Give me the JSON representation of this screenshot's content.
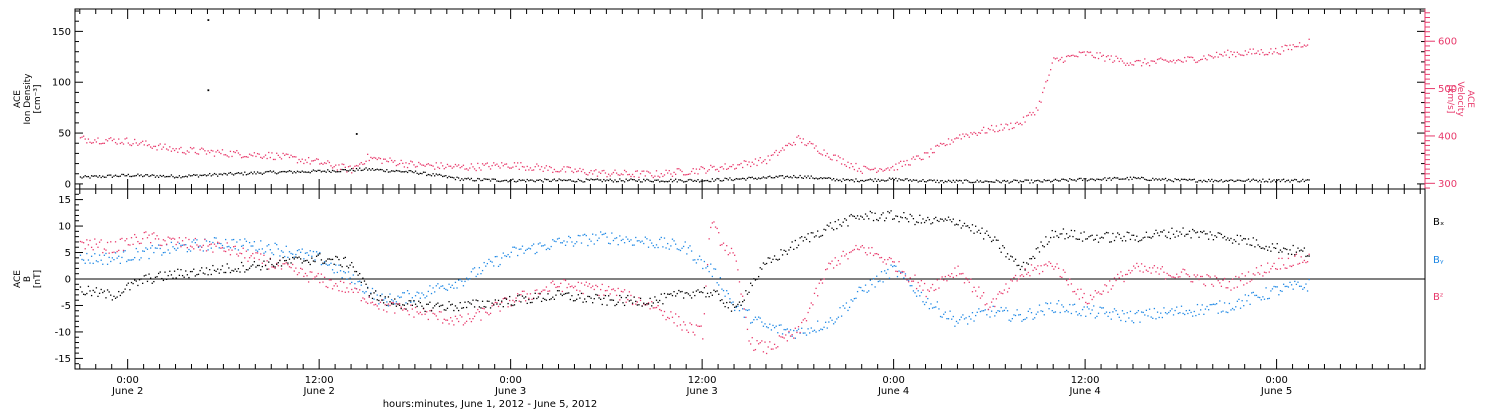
{
  "chart_data": [
    {
      "type": "scatter",
      "panel": "top",
      "ylabel_left": [
        "ACE",
        "Ion Density",
        "[cm⁻³]"
      ],
      "ylabel_right": [
        "ACE",
        "Velocity",
        "[km/s]"
      ],
      "ylim_left": [
        -5,
        172
      ],
      "yticks_left": [
        0,
        50,
        100,
        150
      ],
      "ylim_right": [
        288,
        668
      ],
      "yticks_right": [
        300,
        400,
        500,
        600
      ],
      "colors": {
        "density": "#000000",
        "velocity": "#e8396b"
      },
      "series": [
        {
          "axis": "left",
          "x": [
            -3,
            0,
            3,
            6,
            9,
            12,
            15,
            18,
            21,
            24,
            27,
            30,
            33,
            36,
            39,
            42,
            45,
            48,
            51,
            54,
            57,
            60,
            63,
            66,
            69,
            74
          ],
          "values": [
            7,
            9,
            8,
            10,
            12,
            13,
            15,
            12,
            5,
            4,
            4,
            4,
            4,
            4,
            6,
            8,
            4,
            5,
            3,
            3,
            3,
            5,
            6,
            4,
            4,
            4
          ]
        },
        {
          "axis": "right",
          "x": [
            -3,
            0,
            3,
            6,
            9,
            12,
            14,
            15,
            18,
            21,
            24,
            27,
            30,
            33,
            36,
            38,
            39,
            40,
            42,
            44,
            46,
            48,
            50,
            52,
            54,
            55,
            56,
            57,
            58,
            60,
            63,
            66,
            69,
            72,
            74
          ],
          "values": [
            395,
            390,
            372,
            365,
            360,
            345,
            330,
            355,
            340,
            335,
            340,
            330,
            322,
            320,
            330,
            338,
            345,
            350,
            395,
            360,
            330,
            335,
            360,
            400,
            415,
            420,
            430,
            460,
            560,
            575,
            555,
            560,
            575,
            580,
            600
          ]
        }
      ],
      "scattered_points": [
        {
          "axis": "left",
          "x": 5,
          "y": 162
        },
        {
          "axis": "left",
          "x": 5,
          "y": 93
        },
        {
          "axis": "left",
          "x": 14.3,
          "y": 50
        }
      ]
    },
    {
      "type": "scatter",
      "panel": "bottom",
      "ylabel_left": [
        "ACE",
        "B",
        "[nT]"
      ],
      "ylim": [
        -17,
        17
      ],
      "yticks": [
        -15,
        -10,
        -5,
        0,
        5,
        10,
        15
      ],
      "zero_line": true,
      "legend": [
        "Bₓ",
        "Bᵧ",
        "Bᶻ"
      ],
      "legend_placement": "right",
      "colors": {
        "Bx": "#000000",
        "By": "#1e88e5",
        "Bz": "#e8396b"
      },
      "series": [
        {
          "key": "Bx",
          "x": [
            -3,
            -1,
            1,
            3,
            6,
            9,
            12,
            14,
            15,
            16,
            18,
            21,
            24,
            27,
            30,
            33,
            36,
            36.5,
            37,
            38,
            39,
            40,
            42,
            44,
            46,
            48,
            50,
            52,
            54,
            56,
            58,
            60,
            63,
            66,
            69,
            72,
            74
          ],
          "values": [
            -2,
            -3,
            0,
            1,
            2,
            3,
            4,
            3,
            -2,
            -4,
            -5,
            -5,
            -4,
            -3,
            -4,
            -4,
            -2,
            -3,
            -3,
            -6,
            -1,
            3,
            7,
            10,
            12,
            12,
            11,
            11,
            8,
            2,
            9,
            8,
            8,
            9,
            8,
            6,
            5
          ]
        },
        {
          "key": "By",
          "x": [
            -3,
            -1,
            1,
            3,
            6,
            9,
            12,
            14,
            16,
            18,
            21,
            24,
            27,
            30,
            33,
            35,
            36,
            36.5,
            37,
            38,
            40,
            42,
            44,
            46,
            48,
            50,
            52,
            54,
            56,
            58,
            60,
            63,
            66,
            69,
            72,
            74
          ],
          "values": [
            4,
            4,
            5,
            6,
            7,
            6,
            4,
            0,
            -4,
            -3,
            0,
            5,
            7,
            8,
            7,
            6,
            3,
            2,
            0,
            -5,
            -9,
            -10,
            -8,
            -2,
            2,
            -4,
            -8,
            -6,
            -7,
            -5,
            -6,
            -7,
            -6,
            -5,
            -2,
            -1
          ]
        },
        {
          "key": "Bz",
          "x": [
            -3,
            -1,
            1,
            3,
            6,
            9,
            12,
            14,
            16,
            18,
            21,
            24,
            27,
            30,
            33,
            35,
            36,
            36.5,
            37,
            38,
            39,
            40,
            42,
            44,
            46,
            48,
            50,
            52,
            54,
            56,
            58,
            60,
            63,
            66,
            69,
            72,
            74
          ],
          "values": [
            7,
            6,
            8,
            7,
            6,
            3,
            0,
            -2,
            -5,
            -6,
            -8,
            -4,
            -1,
            -2,
            -5,
            -9,
            -10,
            11,
            8,
            4,
            -12,
            -13,
            -10,
            3,
            6,
            3,
            -2,
            2,
            -5,
            1,
            3,
            -4,
            2,
            1,
            -1,
            3,
            4
          ]
        }
      ]
    }
  ],
  "xaxis": {
    "label": "hours:minutes, June  1, 2012 - June  5, 2012",
    "xlim": [
      -3.3,
      81.3
    ],
    "major_ticks": [
      {
        "x": 0,
        "time": "0:00",
        "day": "June 2"
      },
      {
        "x": 12,
        "time": "12:00",
        "day": "June 2"
      },
      {
        "x": 24,
        "time": "0:00",
        "day": "June 3"
      },
      {
        "x": 36,
        "time": "12:00",
        "day": "June 3"
      },
      {
        "x": 48,
        "time": "0:00",
        "day": "June 4"
      },
      {
        "x": 60,
        "time": "12:00",
        "day": "June 4"
      },
      {
        "x": 72,
        "time": "0:00",
        "day": "June 5"
      }
    ],
    "minor_tick_step_hours": 1
  }
}
